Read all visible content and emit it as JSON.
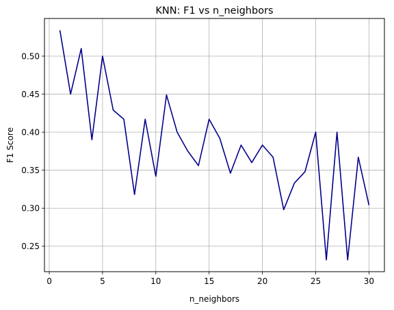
{
  "chart_data": {
    "type": "line",
    "title": "KNN: F1 vs n_neighbors",
    "xlabel": "n_neighbors",
    "ylabel": "F1 Score",
    "xlim": [
      -0.45,
      31.45
    ],
    "ylim": [
      0.2165,
      0.5495
    ],
    "xticks": [
      0,
      5,
      10,
      15,
      20,
      25,
      30
    ],
    "xtick_labels": [
      "0",
      "5",
      "10",
      "15",
      "20",
      "25",
      "30"
    ],
    "yticks": [
      0.25,
      0.3,
      0.35,
      0.4,
      0.45,
      0.5
    ],
    "ytick_labels": [
      "0.25",
      "0.30",
      "0.35",
      "0.40",
      "0.45",
      "0.50"
    ],
    "grid": true,
    "line_color": "#00008b",
    "series": [
      {
        "x": [
          1,
          2,
          3,
          4,
          5,
          6,
          7,
          8,
          9,
          10,
          11,
          12,
          13,
          14,
          15,
          16,
          17,
          18,
          19,
          20,
          21,
          22,
          23,
          24,
          25,
          26,
          27,
          28,
          29,
          30
        ],
        "values": [
          0.534,
          0.45,
          0.51,
          0.39,
          0.5,
          0.429,
          0.417,
          0.318,
          0.417,
          0.342,
          0.449,
          0.4,
          0.375,
          0.356,
          0.417,
          0.392,
          0.346,
          0.383,
          0.36,
          0.383,
          0.367,
          0.298,
          0.333,
          0.348,
          0.4,
          0.232,
          0.4,
          0.232,
          0.367,
          0.304
        ]
      }
    ]
  }
}
